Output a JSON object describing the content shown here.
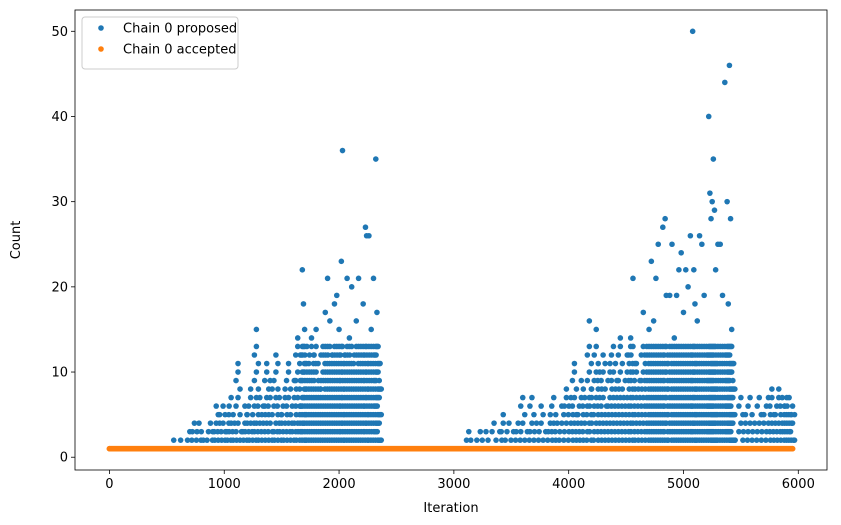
{
  "chart_data": {
    "type": "scatter",
    "title": "",
    "xlabel": "Iteration",
    "ylabel": "Count",
    "xlim": [
      -300,
      6250
    ],
    "ylim": [
      -1.5,
      52.5
    ],
    "xticks": [
      0,
      1000,
      2000,
      3000,
      4000,
      5000,
      6000
    ],
    "yticks": [
      0,
      10,
      20,
      30,
      40,
      50
    ],
    "grid": false,
    "legend": {
      "position": "top-left"
    },
    "series": [
      {
        "name": "Chain 0 proposed",
        "color": "#1f77b4",
        "points": [
          [
            560,
            2
          ],
          [
            620,
            2
          ],
          [
            680,
            2
          ],
          [
            700,
            3
          ],
          [
            740,
            4
          ],
          [
            780,
            4
          ],
          [
            800,
            3
          ],
          [
            850,
            2
          ],
          [
            880,
            4
          ],
          [
            900,
            3
          ],
          [
            930,
            6
          ],
          [
            960,
            5
          ],
          [
            990,
            6
          ],
          [
            1010,
            3
          ],
          [
            1040,
            5
          ],
          [
            1060,
            7
          ],
          [
            1090,
            4
          ],
          [
            1120,
            11
          ],
          [
            1150,
            3
          ],
          [
            1180,
            6
          ],
          [
            1200,
            5
          ],
          [
            1230,
            8
          ],
          [
            1260,
            4
          ],
          [
            1280,
            15
          ],
          [
            1310,
            7
          ],
          [
            1340,
            6
          ],
          [
            1370,
            11
          ],
          [
            1400,
            9
          ],
          [
            1420,
            3
          ],
          [
            1450,
            12
          ],
          [
            1480,
            7
          ],
          [
            1500,
            5
          ],
          [
            1530,
            8
          ],
          [
            1560,
            11
          ],
          [
            1590,
            4
          ],
          [
            1610,
            9
          ],
          [
            1640,
            14
          ],
          [
            1660,
            6
          ],
          [
            1680,
            22
          ],
          [
            1690,
            18
          ],
          [
            1700,
            15
          ],
          [
            1720,
            13
          ],
          [
            1740,
            10
          ],
          [
            1760,
            14
          ],
          [
            1780,
            12
          ],
          [
            1800,
            15
          ],
          [
            1820,
            9
          ],
          [
            1840,
            8
          ],
          [
            1860,
            13
          ],
          [
            1880,
            17
          ],
          [
            1900,
            21
          ],
          [
            1920,
            16
          ],
          [
            1940,
            12
          ],
          [
            1960,
            18
          ],
          [
            1980,
            19
          ],
          [
            2000,
            15
          ],
          [
            2020,
            23
          ],
          [
            2030,
            36
          ],
          [
            2050,
            12
          ],
          [
            2070,
            21
          ],
          [
            2090,
            14
          ],
          [
            2110,
            20
          ],
          [
            2130,
            10
          ],
          [
            2150,
            16
          ],
          [
            2170,
            21
          ],
          [
            2190,
            13
          ],
          [
            2210,
            18
          ],
          [
            2230,
            27
          ],
          [
            2240,
            26
          ],
          [
            2260,
            26
          ],
          [
            2280,
            15
          ],
          [
            2300,
            21
          ],
          [
            2320,
            35
          ],
          [
            2330,
            17
          ],
          [
            2340,
            13
          ],
          [
            2350,
            9
          ],
          [
            3110,
            2
          ],
          [
            3130,
            3
          ],
          [
            3200,
            2
          ],
          [
            3230,
            3
          ],
          [
            3280,
            3
          ],
          [
            3350,
            4
          ],
          [
            3400,
            3
          ],
          [
            3430,
            5
          ],
          [
            3480,
            4
          ],
          [
            3520,
            3
          ],
          [
            3560,
            4
          ],
          [
            3600,
            7
          ],
          [
            3640,
            3
          ],
          [
            3680,
            7
          ],
          [
            3720,
            4
          ],
          [
            3760,
            6
          ],
          [
            3800,
            3
          ],
          [
            3840,
            5
          ],
          [
            3870,
            7
          ],
          [
            3900,
            4
          ],
          [
            3940,
            6
          ],
          [
            3980,
            8
          ],
          [
            4020,
            7
          ],
          [
            4050,
            11
          ],
          [
            4080,
            5
          ],
          [
            4110,
            9
          ],
          [
            4140,
            7
          ],
          [
            4180,
            16
          ],
          [
            4200,
            8
          ],
          [
            4240,
            15
          ],
          [
            4270,
            10
          ],
          [
            4300,
            12
          ],
          [
            4330,
            6
          ],
          [
            4360,
            11
          ],
          [
            4390,
            13
          ],
          [
            4420,
            9
          ],
          [
            4450,
            14
          ],
          [
            4480,
            7
          ],
          [
            4510,
            12
          ],
          [
            4540,
            14
          ],
          [
            4560,
            21
          ],
          [
            4590,
            11
          ],
          [
            4620,
            9
          ],
          [
            4650,
            17
          ],
          [
            4680,
            13
          ],
          [
            4700,
            15
          ],
          [
            4720,
            23
          ],
          [
            4740,
            16
          ],
          [
            4760,
            21
          ],
          [
            4780,
            25
          ],
          [
            4800,
            13
          ],
          [
            4820,
            27
          ],
          [
            4840,
            28
          ],
          [
            4850,
            19
          ],
          [
            4880,
            19
          ],
          [
            4900,
            25
          ],
          [
            4920,
            14
          ],
          [
            4940,
            19
          ],
          [
            4960,
            22
          ],
          [
            4980,
            24
          ],
          [
            5000,
            17
          ],
          [
            5020,
            22
          ],
          [
            5040,
            20
          ],
          [
            5060,
            26
          ],
          [
            5080,
            50
          ],
          [
            5090,
            22
          ],
          [
            5100,
            18
          ],
          [
            5120,
            16
          ],
          [
            5140,
            26
          ],
          [
            5160,
            25
          ],
          [
            5180,
            19
          ],
          [
            5200,
            13
          ],
          [
            5220,
            40
          ],
          [
            5230,
            31
          ],
          [
            5240,
            28
          ],
          [
            5250,
            30
          ],
          [
            5260,
            35
          ],
          [
            5270,
            29
          ],
          [
            5280,
            22
          ],
          [
            5300,
            25
          ],
          [
            5320,
            25
          ],
          [
            5340,
            19
          ],
          [
            5360,
            44
          ],
          [
            5380,
            30
          ],
          [
            5390,
            18
          ],
          [
            5400,
            46
          ],
          [
            5410,
            28
          ],
          [
            5420,
            15
          ],
          [
            5430,
            9
          ],
          [
            5450,
            2
          ],
          [
            5500,
            7
          ],
          [
            5540,
            5
          ],
          [
            5580,
            7
          ],
          [
            5620,
            4
          ],
          [
            5660,
            7
          ],
          [
            5700,
            5
          ],
          [
            5740,
            7
          ],
          [
            5770,
            8
          ],
          [
            5800,
            5
          ],
          [
            5830,
            8
          ],
          [
            5860,
            7
          ],
          [
            5880,
            6
          ],
          [
            5900,
            7
          ],
          [
            5920,
            7
          ],
          [
            5940,
            5
          ],
          [
            5950,
            6
          ]
        ]
      },
      {
        "name": "Chain 0 accepted",
        "color": "#ff7f0e",
        "points": [
          [
            0,
            1
          ],
          [
            5950,
            1
          ]
        ]
      }
    ]
  }
}
